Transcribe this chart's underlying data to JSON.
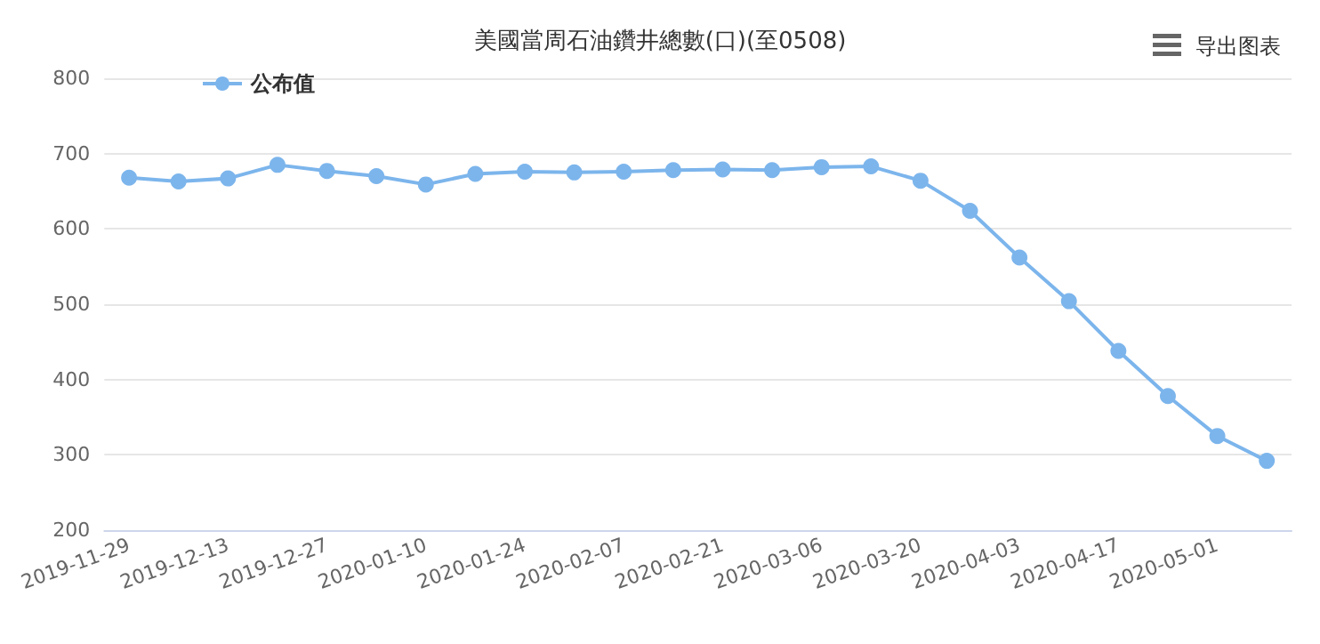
{
  "chart_data": {
    "type": "line",
    "title": "美國當周石油鑽井總數(口)(至0508)",
    "categories": [
      "2019-11-29",
      null,
      "2019-12-13",
      null,
      "2019-12-27",
      null,
      "2020-01-10",
      null,
      "2020-01-24",
      null,
      "2020-02-07",
      null,
      "2020-02-21",
      null,
      "2020-03-06",
      null,
      "2020-03-20",
      null,
      "2020-04-03",
      null,
      "2020-04-17",
      null,
      "2020-05-01",
      null
    ],
    "series": [
      {
        "name": "公布值",
        "color": "#7cb5ec",
        "values": [
          668,
          663,
          667,
          685,
          677,
          670,
          659,
          673,
          676,
          675,
          676,
          678,
          679,
          678,
          682,
          683,
          664,
          624,
          562,
          504,
          438,
          378,
          325,
          292
        ]
      }
    ],
    "ylim": [
      200,
      800
    ],
    "yticks": [
      200,
      300,
      400,
      500,
      600,
      700,
      800
    ],
    "grid": "y",
    "legend": "top left",
    "marker": "circle",
    "line_style": "solid",
    "annotations": [
      "导出图表"
    ]
  }
}
